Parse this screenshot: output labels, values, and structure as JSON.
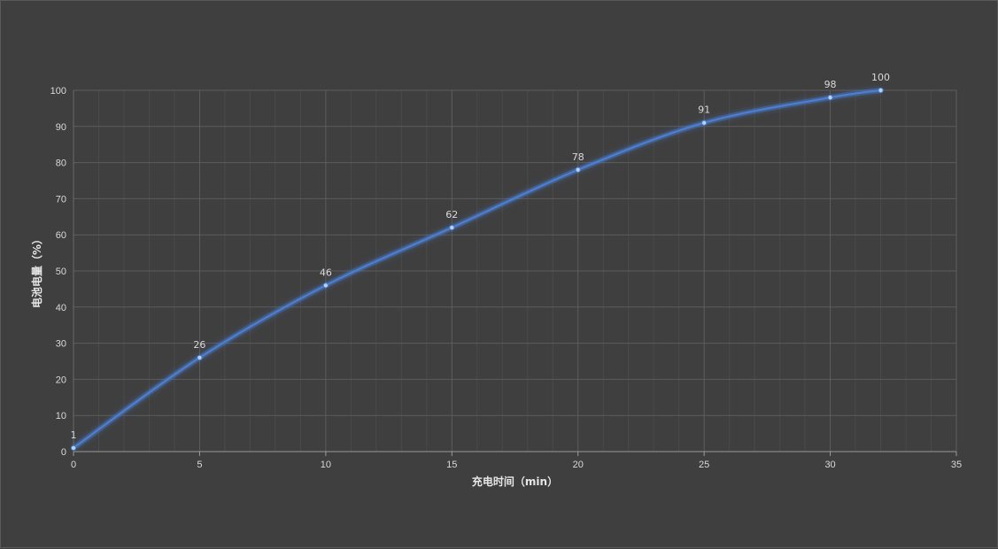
{
  "chart_data": {
    "type": "line",
    "title": "",
    "xlabel": "充电时间（min）",
    "ylabel": "电池电量（%）",
    "xlim": [
      0,
      35
    ],
    "ylim": [
      0,
      100
    ],
    "x_ticks": [
      "0",
      "5",
      "10",
      "15",
      "20",
      "25",
      "30",
      "35"
    ],
    "y_ticks": [
      "0",
      "10",
      "20",
      "30",
      "40",
      "50",
      "60",
      "70",
      "80",
      "90",
      "100"
    ],
    "grid": true,
    "legend": "none",
    "smooth": true,
    "series": [
      {
        "x": [
          0,
          5,
          10,
          15,
          20,
          25,
          30,
          32
        ],
        "y": [
          1,
          26,
          46,
          62,
          78,
          91,
          98,
          100
        ],
        "labels": [
          "1",
          "26",
          "46",
          "62",
          "78",
          "91",
          "98",
          "100"
        ],
        "color": "#4a7fd4"
      }
    ],
    "colors": {
      "background": "#3f3f3f",
      "grid": "#5c5c5c",
      "text": "#d9d9d9"
    }
  }
}
